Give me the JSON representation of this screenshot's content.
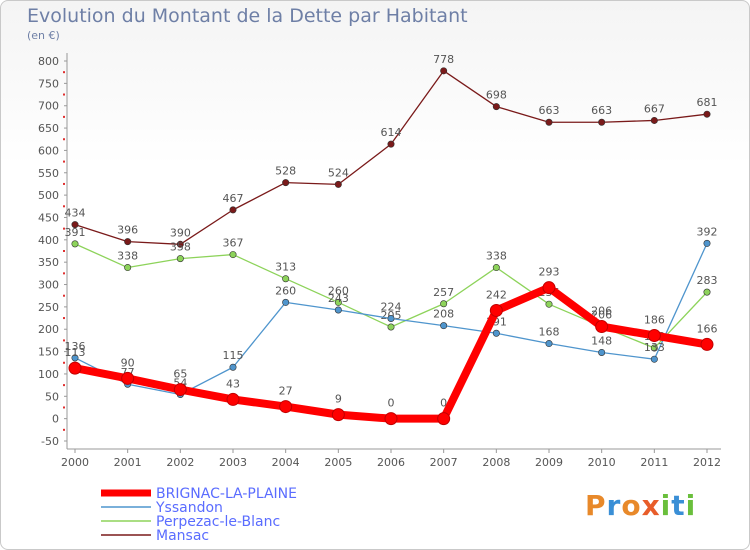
{
  "chart_data": {
    "type": "line",
    "title": "Evolution du Montant de la Dette par Habitant",
    "ylabel": "(en €)",
    "x": [
      "2000",
      "2001",
      "2002",
      "2003",
      "2004",
      "2005",
      "2006",
      "2007",
      "2008",
      "2009",
      "2010",
      "2011",
      "2012"
    ],
    "ylim": [
      -50,
      800
    ],
    "yticks": [
      -50,
      0,
      50,
      100,
      150,
      200,
      250,
      300,
      350,
      400,
      450,
      500,
      550,
      600,
      650,
      700,
      750,
      800
    ],
    "series": [
      {
        "name": "Mansac",
        "color": "#7a1a1a",
        "values": [
          434,
          396,
          390,
          467,
          528,
          524,
          614,
          778,
          698,
          663,
          663,
          667,
          681
        ]
      },
      {
        "name": "Perpezac-le-Blanc",
        "color": "#8dd35a",
        "values": [
          391,
          338,
          358,
          367,
          313,
          260,
          205,
          257,
          338,
          256,
          206,
          158,
          283
        ]
      },
      {
        "name": "Yssandon",
        "color": "#4f95cd",
        "values": [
          136,
          77,
          54,
          115,
          260,
          243,
          224,
          208,
          191,
          168,
          148,
          133,
          392
        ]
      },
      {
        "name": "BRIGNAC-LA-PLAINE",
        "color": "#ff0000",
        "values": [
          113,
          90,
          65,
          43,
          27,
          9,
          0,
          0,
          242,
          293,
          206,
          186,
          166
        ]
      }
    ],
    "legend": [
      "BRIGNAC-LA-PLAINE",
      "Yssandon",
      "Perpezac-le-Blanc",
      "Mansac"
    ],
    "legend_position": "bottom-left",
    "grid": false
  },
  "logo": {
    "letters": [
      "P",
      "r",
      "o",
      "x",
      "i",
      "t",
      "i"
    ]
  }
}
